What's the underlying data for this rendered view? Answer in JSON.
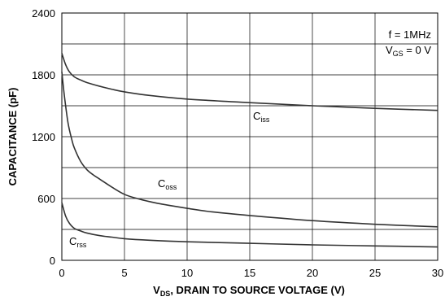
{
  "chart_data": {
    "type": "line",
    "xlabel_main": "V",
    "xlabel_sub": "DS",
    "xlabel_rest": ", DRAIN TO SOURCE VOLTAGE (V)",
    "ylabel": "CAPACITANCE (pF)",
    "xlim": [
      0,
      30
    ],
    "ylim": [
      0,
      2400
    ],
    "grid": true,
    "xticks": [
      0,
      5,
      10,
      15,
      20,
      25,
      30
    ],
    "yticks": [
      0,
      600,
      1200,
      1800,
      2400
    ],
    "annotations": {
      "freq": "f = 1MHz",
      "vgs_main": "V",
      "vgs_sub": "GS",
      "vgs_rest": " = 0 V"
    },
    "series": [
      {
        "name": "Ciss",
        "label_main": "C",
        "label_sub": "iss",
        "x": [
          0,
          0.3,
          0.6,
          1,
          1.5,
          2,
          3,
          4,
          5,
          7,
          10,
          15,
          20,
          25,
          30
        ],
        "y": [
          2010,
          1900,
          1830,
          1780,
          1750,
          1725,
          1690,
          1660,
          1635,
          1600,
          1565,
          1530,
          1500,
          1475,
          1455
        ]
      },
      {
        "name": "Coss",
        "label_main": "C",
        "label_sub": "oss",
        "x": [
          0,
          0.2,
          0.5,
          0.8,
          1,
          1.5,
          2,
          2.5,
          3,
          4,
          5,
          6,
          7,
          8,
          10,
          12,
          15,
          20,
          25,
          30
        ],
        "y": [
          1830,
          1600,
          1330,
          1170,
          1090,
          960,
          880,
          830,
          790,
          710,
          640,
          600,
          570,
          545,
          505,
          470,
          435,
          385,
          350,
          325
        ]
      },
      {
        "name": "Crss",
        "label_main": "C",
        "label_sub": "rss",
        "x": [
          0,
          0.3,
          0.6,
          1,
          1.5,
          2,
          3,
          4,
          5,
          7,
          10,
          15,
          20,
          25,
          30
        ],
        "y": [
          560,
          430,
          360,
          310,
          285,
          265,
          240,
          225,
          210,
          195,
          180,
          165,
          150,
          140,
          130
        ]
      }
    ]
  }
}
